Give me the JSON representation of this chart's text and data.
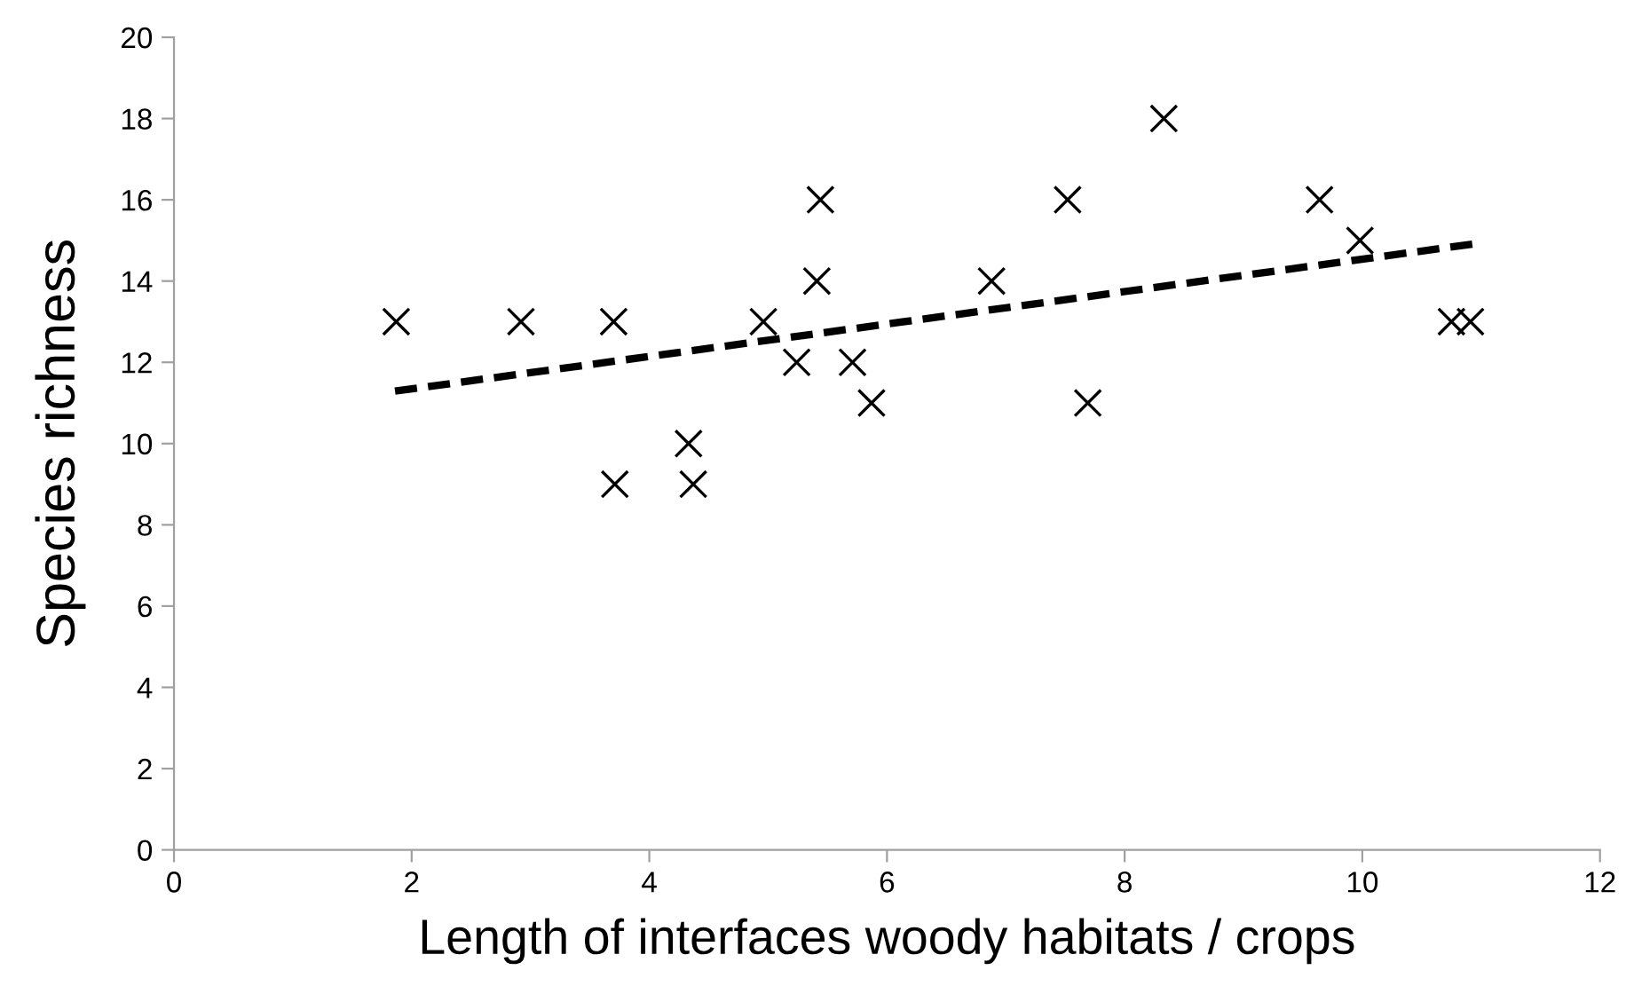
{
  "chart_data": {
    "type": "scatter",
    "xlabel": "Length of interfaces woody habitats / crops",
    "ylabel": "Species richness",
    "xlim": [
      0,
      12
    ],
    "xticks": [
      0,
      2,
      4,
      6,
      8,
      10,
      12
    ],
    "ylim": [
      0,
      20
    ],
    "yticks": [
      0,
      2,
      4,
      6,
      8,
      10,
      12,
      14,
      16,
      18,
      20
    ],
    "grid": false,
    "legend": false,
    "series": [
      {
        "marker": "cross",
        "color": "#000000",
        "x": [
          1.87,
          2.92,
          3.7,
          3.71,
          4.33,
          4.37,
          4.96,
          5.24,
          5.44,
          5.41,
          5.71,
          5.87,
          6.88,
          7.52,
          7.69,
          8.33,
          9.64,
          9.98,
          10.75,
          10.91
        ],
        "values": [
          13,
          13,
          13,
          9,
          10,
          9,
          13,
          12,
          16,
          14,
          12,
          11,
          14,
          16,
          11,
          18,
          16,
          15,
          13,
          13
        ]
      },
      {
        "type": "line",
        "line_style": "dashed",
        "marker": "none",
        "color": "#000000",
        "x": [
          1.86,
          10.93
        ],
        "values": [
          11.29,
          14.91
        ]
      }
    ]
  }
}
